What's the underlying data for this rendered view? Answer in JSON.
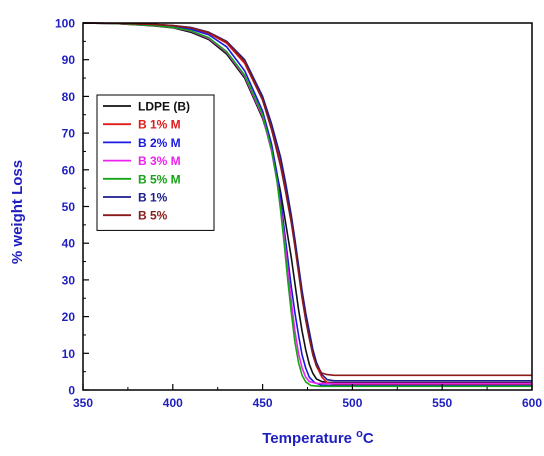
{
  "chart_data": {
    "type": "line",
    "title": "",
    "xlabel": "Temperature °C",
    "ylabel": "% weight Loss",
    "xlim": [
      350,
      600
    ],
    "ylim": [
      0,
      100
    ],
    "xticks": [
      350,
      400,
      450,
      500,
      550,
      600
    ],
    "yticks": [
      0,
      10,
      20,
      30,
      40,
      50,
      60,
      70,
      80,
      90,
      100
    ],
    "grid": false,
    "legend_position": "upper-left",
    "colors": {
      "axis": "#1f1fbf",
      "frame": "#000000"
    },
    "series": [
      {
        "name": "LDPE (B)",
        "color": "#111111",
        "label_color": "#111111",
        "points": [
          [
            350,
            100
          ],
          [
            370,
            99.8
          ],
          [
            390,
            99.2
          ],
          [
            400,
            98.7
          ],
          [
            410,
            97.5
          ],
          [
            420,
            95.5
          ],
          [
            430,
            91.5
          ],
          [
            440,
            85
          ],
          [
            450,
            74
          ],
          [
            455,
            66
          ],
          [
            460,
            54
          ],
          [
            463,
            45
          ],
          [
            466,
            36
          ],
          [
            468,
            29
          ],
          [
            470,
            22
          ],
          [
            472,
            16
          ],
          [
            474,
            11
          ],
          [
            476,
            7
          ],
          [
            478,
            4.5
          ],
          [
            480,
            3
          ],
          [
            483,
            2.3
          ],
          [
            486,
            2.1
          ],
          [
            490,
            2
          ],
          [
            600,
            2
          ]
        ]
      },
      {
        "name": "B 1% M",
        "color": "#e01b1b",
        "label_color": "#e01b1b",
        "points": [
          [
            350,
            100
          ],
          [
            370,
            99.9
          ],
          [
            390,
            99.6
          ],
          [
            400,
            99.2
          ],
          [
            410,
            98.6
          ],
          [
            420,
            97.2
          ],
          [
            430,
            94.5
          ],
          [
            440,
            89
          ],
          [
            450,
            79
          ],
          [
            455,
            71
          ],
          [
            460,
            62
          ],
          [
            463,
            54
          ],
          [
            466,
            46
          ],
          [
            468,
            40
          ],
          [
            470,
            33
          ],
          [
            472,
            26
          ],
          [
            474,
            20
          ],
          [
            476,
            15
          ],
          [
            478,
            10
          ],
          [
            480,
            6.5
          ],
          [
            483,
            3.5
          ],
          [
            486,
            2
          ],
          [
            490,
            1.5
          ],
          [
            600,
            1.5
          ]
        ]
      },
      {
        "name": "B 2% M",
        "color": "#1a1ae0",
        "label_color": "#1a1ae0",
        "points": [
          [
            350,
            100
          ],
          [
            370,
            99.9
          ],
          [
            390,
            99.5
          ],
          [
            400,
            99
          ],
          [
            410,
            98.3
          ],
          [
            420,
            96.8
          ],
          [
            430,
            93.5
          ],
          [
            440,
            87
          ],
          [
            450,
            76
          ],
          [
            455,
            67
          ],
          [
            458,
            59
          ],
          [
            460,
            52
          ],
          [
            462,
            44
          ],
          [
            464,
            36
          ],
          [
            466,
            28
          ],
          [
            468,
            21
          ],
          [
            470,
            15
          ],
          [
            472,
            9.5
          ],
          [
            474,
            6
          ],
          [
            476,
            3.5
          ],
          [
            479,
            2
          ],
          [
            483,
            1.3
          ],
          [
            490,
            1.2
          ],
          [
            600,
            1.2
          ]
        ]
      },
      {
        "name": "B 3% M",
        "color": "#ee22ee",
        "label_color": "#ee22ee",
        "points": [
          [
            350,
            100
          ],
          [
            370,
            99.8
          ],
          [
            390,
            99.3
          ],
          [
            400,
            98.8
          ],
          [
            410,
            97.8
          ],
          [
            420,
            95.8
          ],
          [
            430,
            92
          ],
          [
            440,
            85.5
          ],
          [
            450,
            74.5
          ],
          [
            455,
            65
          ],
          [
            458,
            57
          ],
          [
            460,
            50
          ],
          [
            462,
            42
          ],
          [
            464,
            33
          ],
          [
            466,
            24
          ],
          [
            468,
            16
          ],
          [
            470,
            10
          ],
          [
            472,
            6
          ],
          [
            474,
            3.5
          ],
          [
            476,
            2.3
          ],
          [
            480,
            1.8
          ],
          [
            490,
            1.8
          ],
          [
            600,
            1.8
          ]
        ]
      },
      {
        "name": "B 5% M",
        "color": "#16a316",
        "label_color": "#16a316",
        "points": [
          [
            350,
            100
          ],
          [
            370,
            99.8
          ],
          [
            390,
            99.3
          ],
          [
            400,
            98.8
          ],
          [
            410,
            97.9
          ],
          [
            420,
            96
          ],
          [
            430,
            92.2
          ],
          [
            440,
            85.8
          ],
          [
            450,
            75
          ],
          [
            455,
            65.5
          ],
          [
            458,
            57
          ],
          [
            460,
            49
          ],
          [
            462,
            40
          ],
          [
            464,
            30
          ],
          [
            466,
            21
          ],
          [
            468,
            13
          ],
          [
            470,
            7.5
          ],
          [
            472,
            4
          ],
          [
            474,
            2.2
          ],
          [
            477,
            1.2
          ],
          [
            482,
            1
          ],
          [
            490,
            1
          ],
          [
            600,
            1
          ]
        ]
      },
      {
        "name": "B 1%",
        "color": "#1c1c8c",
        "label_color": "#1c1c8c",
        "points": [
          [
            350,
            100
          ],
          [
            370,
            99.9
          ],
          [
            390,
            99.6
          ],
          [
            400,
            99.3
          ],
          [
            410,
            98.8
          ],
          [
            420,
            97.5
          ],
          [
            430,
            95
          ],
          [
            440,
            90
          ],
          [
            450,
            80
          ],
          [
            455,
            72.5
          ],
          [
            460,
            63.5
          ],
          [
            463,
            56
          ],
          [
            466,
            47.5
          ],
          [
            468,
            41
          ],
          [
            470,
            34
          ],
          [
            472,
            27
          ],
          [
            474,
            21
          ],
          [
            476,
            16
          ],
          [
            478,
            11
          ],
          [
            480,
            7.5
          ],
          [
            483,
            4.2
          ],
          [
            486,
            2.8
          ],
          [
            490,
            2.5
          ],
          [
            600,
            2.5
          ]
        ]
      },
      {
        "name": "B 5%",
        "color": "#8b1a1a",
        "label_color": "#8b1a1a",
        "points": [
          [
            350,
            100
          ],
          [
            370,
            99.9
          ],
          [
            390,
            99.6
          ],
          [
            400,
            99.3
          ],
          [
            410,
            98.7
          ],
          [
            420,
            97.4
          ],
          [
            430,
            94.8
          ],
          [
            440,
            89.5
          ],
          [
            450,
            79
          ],
          [
            455,
            71
          ],
          [
            460,
            61
          ],
          [
            463,
            53.5
          ],
          [
            466,
            45.5
          ],
          [
            468,
            39
          ],
          [
            470,
            32
          ],
          [
            472,
            25
          ],
          [
            474,
            19
          ],
          [
            476,
            14
          ],
          [
            478,
            9.5
          ],
          [
            480,
            6.5
          ],
          [
            483,
            4.6
          ],
          [
            486,
            4.2
          ],
          [
            490,
            4
          ],
          [
            600,
            4
          ]
        ]
      }
    ]
  }
}
